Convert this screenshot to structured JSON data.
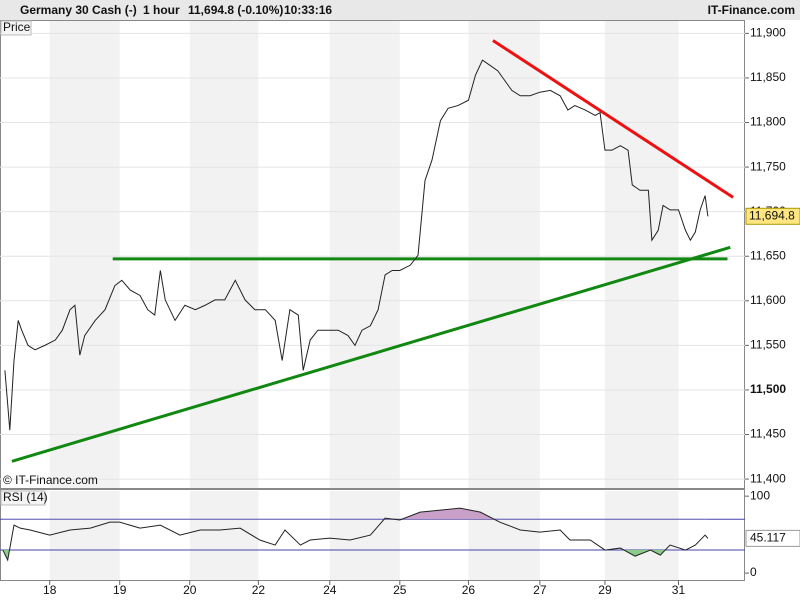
{
  "header": {
    "instrument": "Germany 30 Cash (-)",
    "period": "1 hour",
    "quote": "11,694.8 (-0.10%)",
    "time": "10:33:16",
    "brand": "IT-Finance.com"
  },
  "chart_data": [
    {
      "type": "line",
      "title": "Price",
      "credit": "© IT-Finance.com",
      "x": [
        0.07,
        0.14,
        0.2,
        0.26,
        0.31,
        0.4,
        0.5,
        0.64,
        0.79,
        0.89,
        1,
        1.07,
        1.14,
        1.21,
        1.36,
        1.5,
        1.64,
        1.74,
        1.86,
        2,
        2.11,
        2.21,
        2.29,
        2.36,
        2.5,
        2.64,
        2.79,
        2.93,
        3.07,
        3.21,
        3.36,
        3.5,
        3.64,
        3.79,
        3.93,
        4.03,
        4.14,
        4.26,
        4.33,
        4.43,
        4.54,
        4.69,
        4.83,
        4.97,
        5.07,
        5.17,
        5.29,
        5.4,
        5.5,
        5.6,
        5.71,
        5.86,
        5.97,
        6.07,
        6.17,
        6.29,
        6.4,
        6.54,
        6.69,
        6.79,
        6.89,
        7,
        7.11,
        7.21,
        7.31,
        7.43,
        7.57,
        7.71,
        7.86,
        8,
        8.11,
        8.21,
        8.36,
        8.5,
        8.57,
        8.64,
        8.74,
        8.86,
        8.97,
        9.03,
        9.14,
        9.26,
        9.31,
        9.4,
        9.47,
        9.57,
        9.69,
        9.79,
        9.86,
        9.93,
        10,
        10.07,
        10.11
      ],
      "series": [
        {
          "color": "#222222",
          "values": [
            11522,
            11455,
            11533,
            11578,
            11567,
            11550,
            11545,
            11550,
            11556,
            11567,
            11590,
            11595,
            11539,
            11561,
            11578,
            11590,
            11617,
            11623,
            11612,
            11606,
            11590,
            11584,
            11634,
            11601,
            11578,
            11595,
            11590,
            11595,
            11601,
            11601,
            11623,
            11601,
            11590,
            11590,
            11578,
            11533,
            11590,
            11584,
            11522,
            11556,
            11567,
            11567,
            11567,
            11561,
            11550,
            11567,
            11572,
            11590,
            11629,
            11634,
            11634,
            11640,
            11651,
            11735,
            11758,
            11802,
            11816,
            11819,
            11825,
            11853,
            11870,
            11864,
            11858,
            11847,
            11836,
            11830,
            11830,
            11834,
            11836,
            11830,
            11814,
            11819,
            11814,
            11808,
            11811,
            11769,
            11769,
            11774,
            11769,
            11730,
            11724,
            11724,
            11668,
            11679,
            11707,
            11702,
            11702,
            11679,
            11668,
            11677,
            11702,
            11718,
            11694.8
          ],
          "last_label": "11,694.8"
        }
      ],
      "trendlines": [
        {
          "color": "#ee1111",
          "x": [
            7.04,
            10.47
          ],
          "values": [
            11892,
            11716
          ]
        },
        {
          "color": "#118811",
          "x": [
            1.61,
            10.39
          ],
          "values": [
            11647,
            11647
          ]
        },
        {
          "color": "#118811",
          "x": [
            0.17,
            10.43
          ],
          "values": [
            11420,
            11660
          ]
        }
      ],
      "xlim": [
        0,
        10.64
      ],
      "xticks": [
        {
          "value": 0.71,
          "label": "18"
        },
        {
          "value": 1.71,
          "label": "19"
        },
        {
          "value": 2.71,
          "label": "20"
        },
        {
          "value": 3.69,
          "label": "22"
        },
        {
          "value": 4.71,
          "label": "24"
        },
        {
          "value": 5.71,
          "label": "25"
        },
        {
          "value": 6.69,
          "label": "26"
        },
        {
          "value": 7.71,
          "label": "27"
        },
        {
          "value": 8.64,
          "label": "29"
        },
        {
          "value": 9.69,
          "label": "31"
        }
      ],
      "ylim": [
        11390,
        11915
      ],
      "yticks": [
        {
          "value": 11400,
          "label": "11,400"
        },
        {
          "value": 11450,
          "label": "11,450"
        },
        {
          "value": 11500,
          "label": "11,500"
        },
        {
          "value": 11550,
          "label": "11,550"
        },
        {
          "value": 11600,
          "label": "11,600"
        },
        {
          "value": 11650,
          "label": "11,650"
        },
        {
          "value": 11700,
          "label": "11,700"
        },
        {
          "value": 11750,
          "label": "11,750"
        },
        {
          "value": 11800,
          "label": "11,800"
        },
        {
          "value": 11850,
          "label": "11,850"
        },
        {
          "value": 11900,
          "label": "11,900"
        }
      ],
      "grid": true
    },
    {
      "type": "line",
      "title": "RSI (14)",
      "x": [
        0.04,
        0.11,
        0.2,
        0.29,
        0.43,
        0.71,
        1,
        1.29,
        1.57,
        1.71,
        2,
        2.29,
        2.57,
        2.86,
        3.14,
        3.43,
        3.71,
        3.93,
        4.07,
        4.29,
        4.43,
        4.71,
        5,
        5.29,
        5.5,
        5.71,
        6,
        6.29,
        6.57,
        6.86,
        7.14,
        7.43,
        7.71,
        8,
        8.14,
        8.43,
        8.64,
        8.86,
        9.07,
        9.29,
        9.43,
        9.57,
        9.79,
        9.93,
        10.07,
        10.11
      ],
      "series": [
        {
          "color": "#222222",
          "values": [
            29.9,
            17,
            62.3,
            58.4,
            56,
            49.4,
            56,
            58.4,
            66.2,
            66.2,
            58.4,
            62.3,
            49.4,
            56,
            56,
            58.4,
            43,
            36.4,
            56,
            36.4,
            43,
            45.5,
            43,
            49.4,
            71.4,
            69,
            79.2,
            81.8,
            84.4,
            79.2,
            66.2,
            56,
            53.2,
            56,
            43,
            43,
            29.9,
            32.5,
            22,
            29.9,
            23.4,
            36.4,
            29.9,
            36.4,
            49.4,
            45.117
          ]
        }
      ],
      "levels": [
        30,
        70
      ],
      "xlim": [
        0,
        10.64
      ],
      "ylim": [
        -9,
        108
      ],
      "yticks": [
        0,
        100
      ]
    }
  ]
}
